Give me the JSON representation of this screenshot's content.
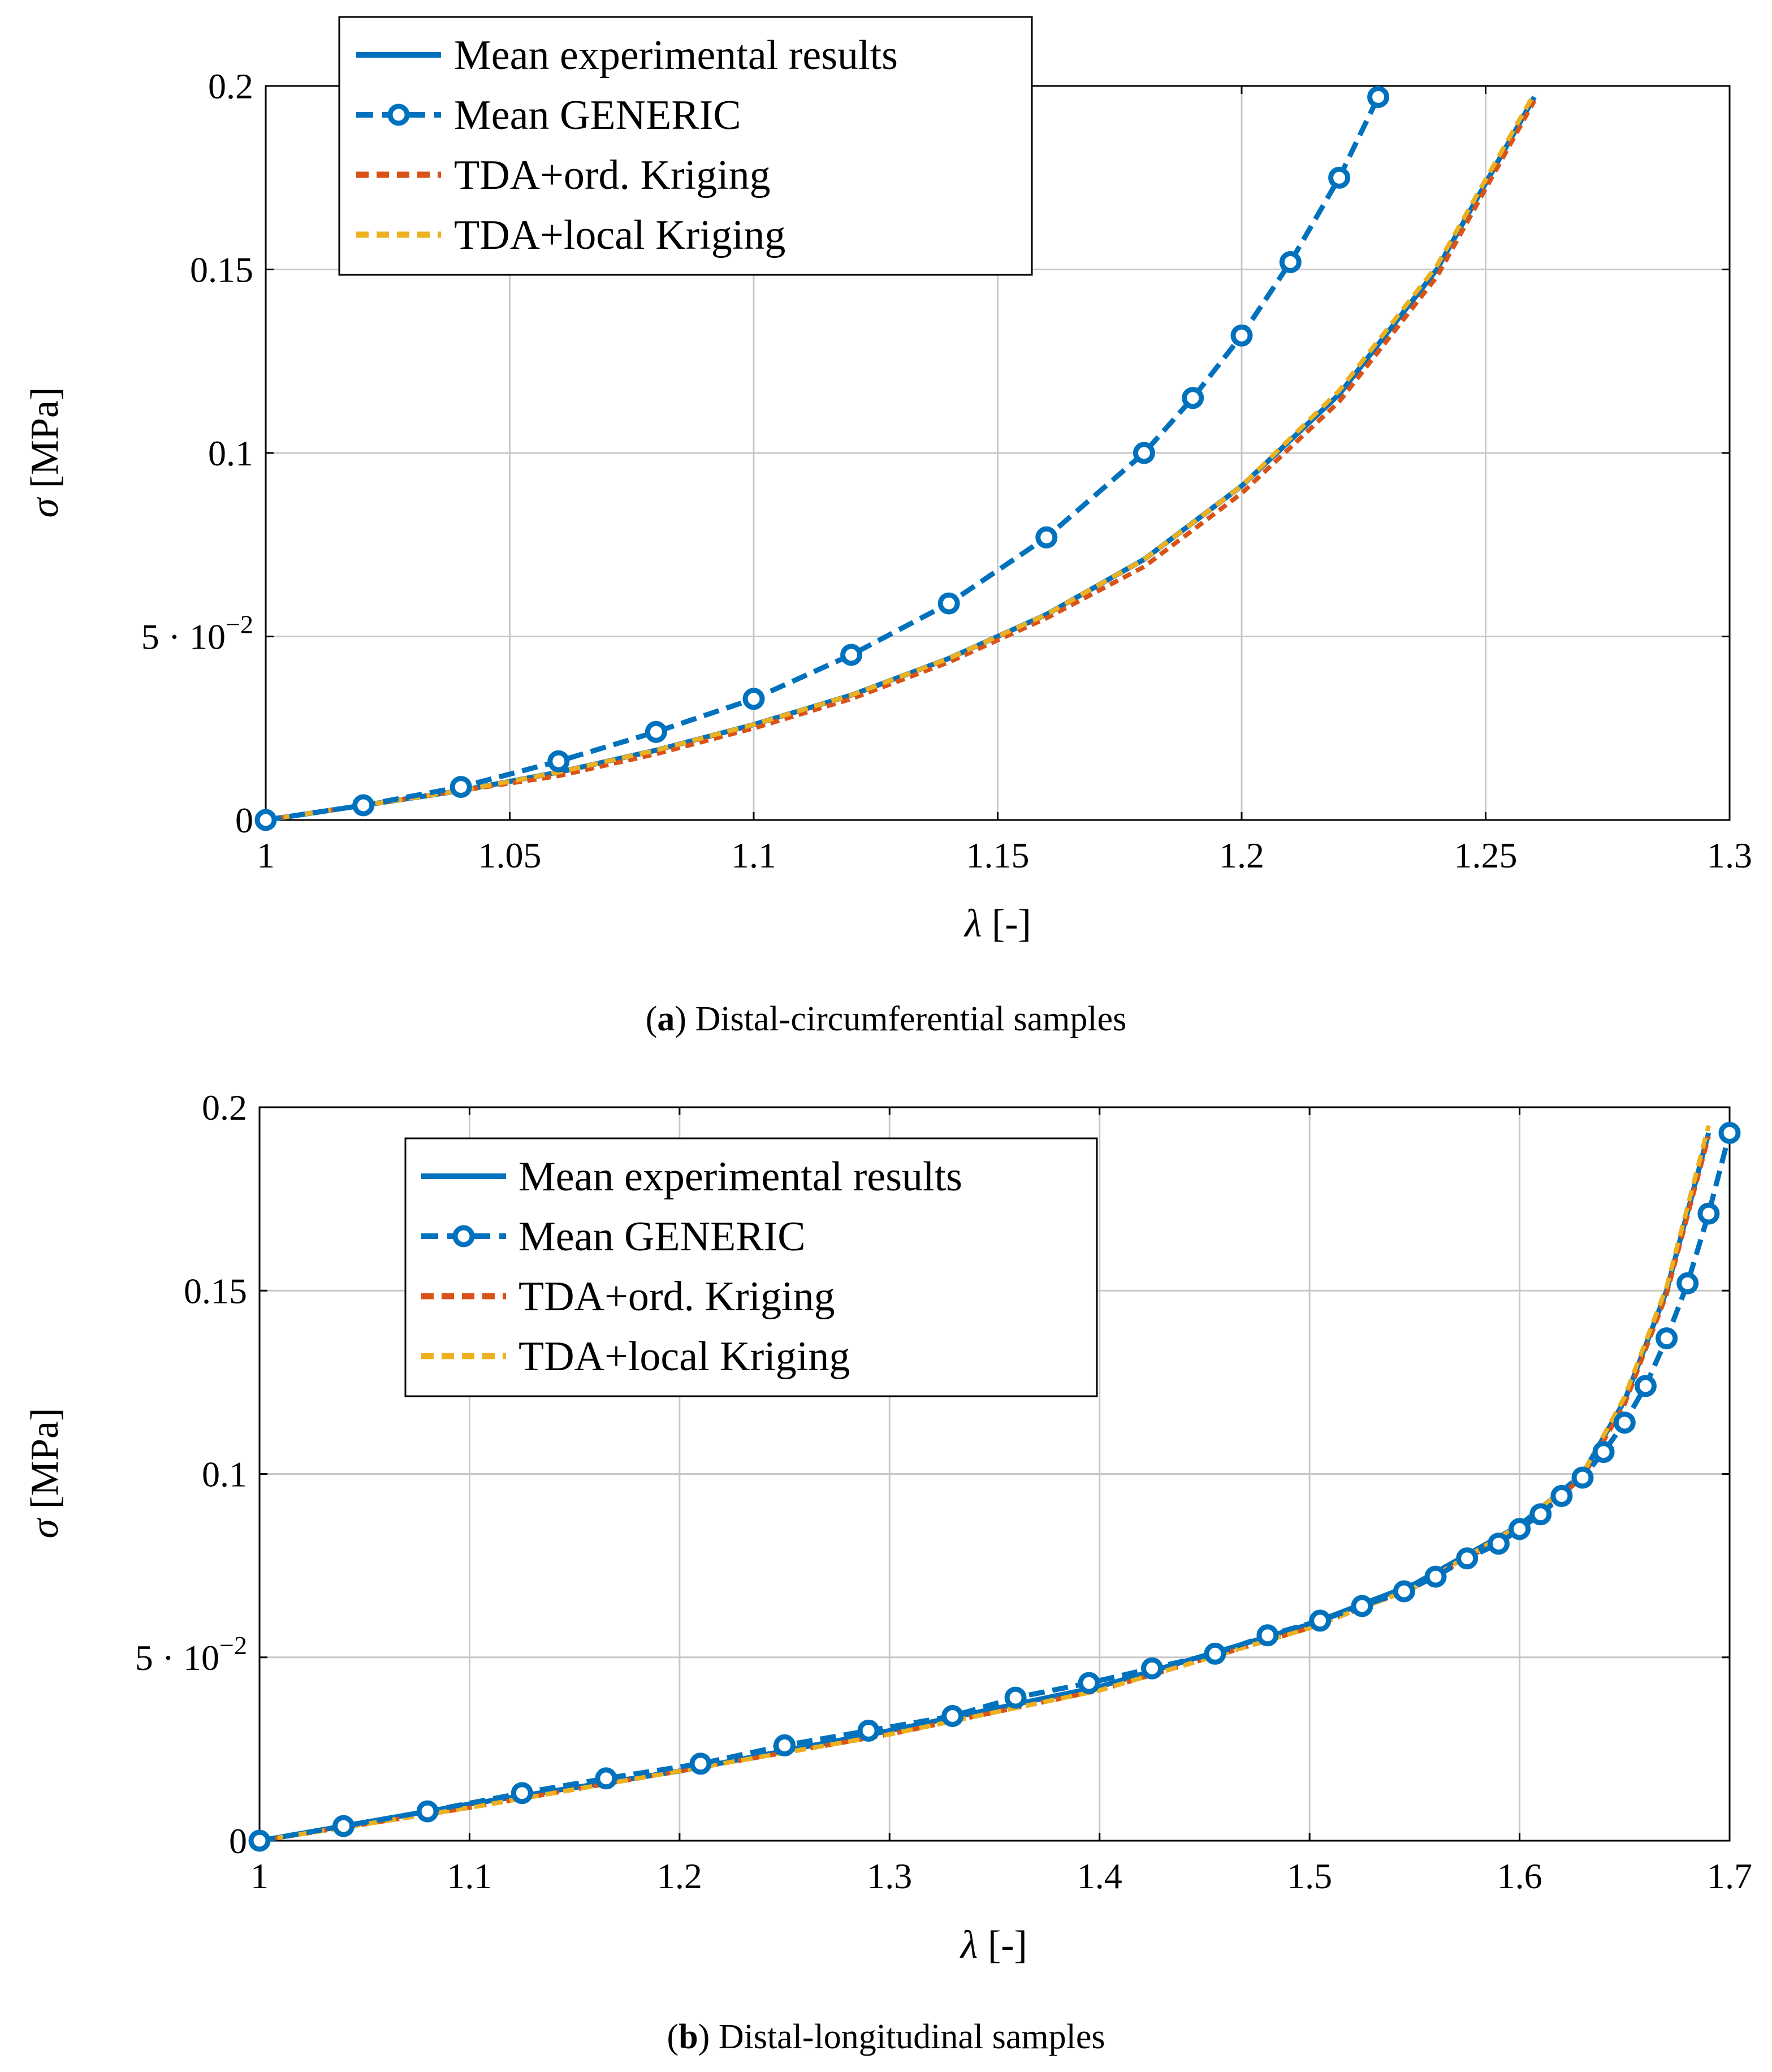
{
  "chart_data": [
    {
      "id": "a",
      "type": "line",
      "caption_letter": "a",
      "caption_text": "Distal-circumferential samples",
      "xlabel_symbol": "λ",
      "xlabel_unit": "[-]",
      "ylabel_symbol": "σ",
      "ylabel_unit": "[MPa]",
      "xlim": [
        1,
        1.3
      ],
      "ylim": [
        0,
        0.2
      ],
      "grid": true,
      "legend_position": "top-left",
      "x_ticks": [
        {
          "value": 1,
          "label": "1"
        },
        {
          "value": 1.05,
          "label": "1.05"
        },
        {
          "value": 1.1,
          "label": "1.1"
        },
        {
          "value": 1.15,
          "label": "1.15"
        },
        {
          "value": 1.2,
          "label": "1.2"
        },
        {
          "value": 1.25,
          "label": "1.25"
        },
        {
          "value": 1.3,
          "label": "1.3"
        }
      ],
      "y_ticks": [
        {
          "value": 0,
          "label": "0"
        },
        {
          "value": 0.05,
          "label": "5 · 10",
          "exp": "−2"
        },
        {
          "value": 0.1,
          "label": "0.1"
        },
        {
          "value": 0.15,
          "label": "0.15"
        },
        {
          "value": 0.2,
          "label": "0.2"
        }
      ],
      "series": [
        {
          "name": "Mean experimental results",
          "color": "#0072bd",
          "style": "solid",
          "x": [
            1.0,
            1.02,
            1.04,
            1.06,
            1.08,
            1.1,
            1.12,
            1.14,
            1.16,
            1.18,
            1.2,
            1.22,
            1.24,
            1.26
          ],
          "values": [
            0.0,
            0.004,
            0.008,
            0.013,
            0.019,
            0.026,
            0.034,
            0.044,
            0.056,
            0.071,
            0.091,
            0.116,
            0.15,
            0.197
          ]
        },
        {
          "name": "Mean GENERIC",
          "color": "#0072bd",
          "style": "dashed-circles",
          "x": [
            1.0,
            1.02,
            1.04,
            1.06,
            1.08,
            1.1,
            1.12,
            1.14,
            1.16,
            1.18,
            1.19,
            1.2,
            1.21,
            1.22,
            1.228
          ],
          "values": [
            0.0,
            0.004,
            0.009,
            0.016,
            0.024,
            0.033,
            0.045,
            0.059,
            0.077,
            0.1,
            0.115,
            0.132,
            0.152,
            0.175,
            0.197
          ]
        },
        {
          "name": "TDA+ord. Kriging",
          "color": "#d95319",
          "style": "dotted",
          "x": [
            1.0,
            1.02,
            1.04,
            1.06,
            1.08,
            1.1,
            1.12,
            1.14,
            1.16,
            1.18,
            1.2,
            1.22,
            1.24,
            1.26
          ],
          "values": [
            0.0,
            0.004,
            0.008,
            0.012,
            0.018,
            0.025,
            0.033,
            0.043,
            0.055,
            0.069,
            0.089,
            0.114,
            0.148,
            0.196
          ]
        },
        {
          "name": "TDA+local Kriging",
          "color": "#edb120",
          "style": "dashed",
          "x": [
            1.0,
            1.02,
            1.04,
            1.06,
            1.08,
            1.1,
            1.12,
            1.14,
            1.16,
            1.18,
            1.2,
            1.22,
            1.24,
            1.26
          ],
          "values": [
            0.0,
            0.004,
            0.008,
            0.013,
            0.019,
            0.026,
            0.034,
            0.044,
            0.056,
            0.071,
            0.091,
            0.117,
            0.151,
            0.198
          ]
        }
      ]
    },
    {
      "id": "b",
      "type": "line",
      "caption_letter": "b",
      "caption_text": "Distal-longitudinal samples",
      "xlabel_symbol": "λ",
      "xlabel_unit": "[-]",
      "ylabel_symbol": "σ",
      "ylabel_unit": "[MPa]",
      "xlim": [
        1,
        1.7
      ],
      "ylim": [
        0,
        0.2
      ],
      "grid": true,
      "legend_position": "top-left",
      "x_ticks": [
        {
          "value": 1,
          "label": "1"
        },
        {
          "value": 1.1,
          "label": "1.1"
        },
        {
          "value": 1.2,
          "label": "1.2"
        },
        {
          "value": 1.3,
          "label": "1.3"
        },
        {
          "value": 1.4,
          "label": "1.4"
        },
        {
          "value": 1.5,
          "label": "1.5"
        },
        {
          "value": 1.6,
          "label": "1.6"
        },
        {
          "value": 1.7,
          "label": "1.7"
        }
      ],
      "y_ticks": [
        {
          "value": 0,
          "label": "0"
        },
        {
          "value": 0.05,
          "label": "5 · 10",
          "exp": "−2"
        },
        {
          "value": 0.1,
          "label": "0.1"
        },
        {
          "value": 0.15,
          "label": "0.15"
        },
        {
          "value": 0.2,
          "label": "0.2"
        }
      ],
      "series": [
        {
          "name": "Mean experimental results",
          "color": "#0072bd",
          "style": "solid",
          "x": [
            1.0,
            1.1,
            1.2,
            1.3,
            1.4,
            1.5,
            1.55,
            1.6,
            1.63,
            1.65,
            1.67,
            1.69
          ],
          "values": [
            0.0,
            0.01,
            0.019,
            0.03,
            0.042,
            0.059,
            0.07,
            0.086,
            0.1,
            0.12,
            0.15,
            0.193
          ]
        },
        {
          "name": "Mean GENERIC",
          "color": "#0072bd",
          "style": "dashed-circles",
          "x": [
            1.0,
            1.04,
            1.08,
            1.125,
            1.165,
            1.21,
            1.25,
            1.29,
            1.33,
            1.36,
            1.395,
            1.425,
            1.455,
            1.48,
            1.505,
            1.525,
            1.545,
            1.56,
            1.575,
            1.59,
            1.6,
            1.61,
            1.62,
            1.63,
            1.64,
            1.65,
            1.66,
            1.67,
            1.68,
            1.69,
            1.7
          ],
          "values": [
            0.0,
            0.004,
            0.008,
            0.013,
            0.017,
            0.021,
            0.026,
            0.03,
            0.034,
            0.039,
            0.043,
            0.047,
            0.051,
            0.056,
            0.06,
            0.064,
            0.068,
            0.072,
            0.077,
            0.081,
            0.085,
            0.089,
            0.094,
            0.099,
            0.106,
            0.114,
            0.124,
            0.137,
            0.152,
            0.171,
            0.193
          ]
        },
        {
          "name": "TDA+ord. Kriging",
          "color": "#d95319",
          "style": "dotted",
          "x": [
            1.0,
            1.1,
            1.2,
            1.3,
            1.4,
            1.5,
            1.55,
            1.6,
            1.63,
            1.65,
            1.67,
            1.69
          ],
          "values": [
            0.0,
            0.009,
            0.019,
            0.029,
            0.041,
            0.058,
            0.069,
            0.085,
            0.099,
            0.119,
            0.149,
            0.192
          ]
        },
        {
          "name": "TDA+local Kriging",
          "color": "#edb120",
          "style": "dashed",
          "x": [
            1.0,
            1.1,
            1.2,
            1.3,
            1.4,
            1.5,
            1.55,
            1.6,
            1.63,
            1.65,
            1.67,
            1.69
          ],
          "values": [
            0.0,
            0.009,
            0.019,
            0.029,
            0.041,
            0.058,
            0.069,
            0.086,
            0.1,
            0.121,
            0.151,
            0.195
          ]
        }
      ]
    }
  ]
}
